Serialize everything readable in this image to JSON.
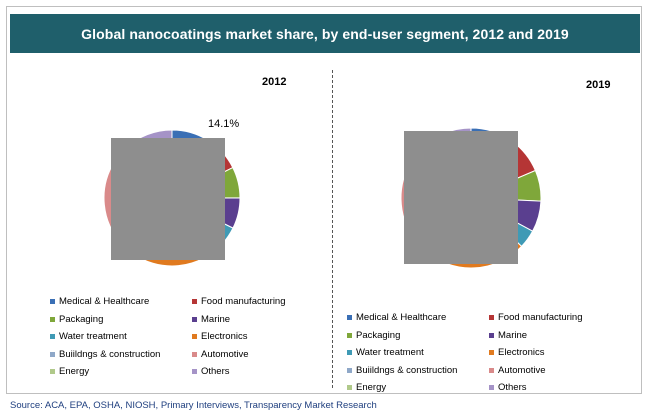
{
  "chart_data": {
    "type": "pie",
    "title": "Global nanocoatings market share, by end-user segment, 2012 and 2019",
    "categories": [
      "Medical & Healthcare",
      "Food manufacturing",
      "Packaging",
      "Marine",
      "Water treatment",
      "Electronics",
      "Buiildngs & construction",
      "Automotive",
      "Energy",
      "Others"
    ],
    "colors": [
      "#3a6fb5",
      "#b53535",
      "#7fa73a",
      "#5a3f8f",
      "#3f9ab5",
      "#e07a1f",
      "#8fa8c8",
      "#d98a8a",
      "#b0c98a",
      "#a593c7"
    ],
    "series": [
      {
        "name": "2012",
        "values": [
          6,
          6,
          5,
          5,
          3,
          16,
          2,
          14.1,
          3,
          8
        ]
      },
      {
        "name": "2019",
        "values": [
          7,
          6,
          5,
          5,
          3,
          17,
          2,
          13,
          3,
          9
        ]
      }
    ],
    "annotations": [
      {
        "series": "2012",
        "label": "14.1%"
      }
    ],
    "legend_position": "bottom"
  },
  "source": "Source: ACA, EPA, OSHA, NIOSH, Primary Interviews, Transparency Market Research"
}
